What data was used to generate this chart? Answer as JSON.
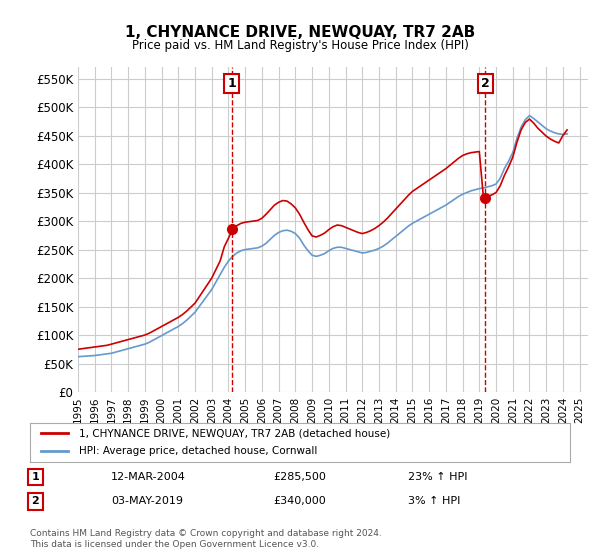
{
  "title": "1, CHYNANCE DRIVE, NEWQUAY, TR7 2AB",
  "subtitle": "Price paid vs. HM Land Registry's House Price Index (HPI)",
  "ylabel_ticks": [
    "£0",
    "£50K",
    "£100K",
    "£150K",
    "£200K",
    "£250K",
    "£300K",
    "£350K",
    "£400K",
    "£450K",
    "£500K",
    "£550K"
  ],
  "ytick_values": [
    0,
    50000,
    100000,
    150000,
    200000,
    250000,
    300000,
    350000,
    400000,
    450000,
    500000,
    550000
  ],
  "ylim": [
    0,
    570000
  ],
  "xlim_start": 1995.0,
  "xlim_end": 2025.5,
  "legend_line1": "1, CHYNANCE DRIVE, NEWQUAY, TR7 2AB (detached house)",
  "legend_line2": "HPI: Average price, detached house, Cornwall",
  "sale1_label": "1",
  "sale1_date": "12-MAR-2004",
  "sale1_price": "£285,500",
  "sale1_hpi": "23% ↑ HPI",
  "sale1_year": 2004.2,
  "sale1_value": 285500,
  "sale2_label": "2",
  "sale2_date": "03-MAY-2019",
  "sale2_price": "£340,000",
  "sale2_hpi": "3% ↑ HPI",
  "sale2_year": 2019.35,
  "sale2_value": 340000,
  "footnote1": "Contains HM Land Registry data © Crown copyright and database right 2024.",
  "footnote2": "This data is licensed under the Open Government Licence v3.0.",
  "line_red_color": "#cc0000",
  "line_blue_color": "#6699cc",
  "marker_color": "#cc0000",
  "vline_color": "#cc0000",
  "grid_color": "#cccccc",
  "bg_color": "#ffffff",
  "hpi_x": [
    1995.0,
    1995.25,
    1995.5,
    1995.75,
    1996.0,
    1996.25,
    1996.5,
    1996.75,
    1997.0,
    1997.25,
    1997.5,
    1997.75,
    1998.0,
    1998.25,
    1998.5,
    1998.75,
    1999.0,
    1999.25,
    1999.5,
    1999.75,
    2000.0,
    2000.25,
    2000.5,
    2000.75,
    2001.0,
    2001.25,
    2001.5,
    2001.75,
    2002.0,
    2002.25,
    2002.5,
    2002.75,
    2003.0,
    2003.25,
    2003.5,
    2003.75,
    2004.0,
    2004.25,
    2004.5,
    2004.75,
    2005.0,
    2005.25,
    2005.5,
    2005.75,
    2006.0,
    2006.25,
    2006.5,
    2006.75,
    2007.0,
    2007.25,
    2007.5,
    2007.75,
    2008.0,
    2008.25,
    2008.5,
    2008.75,
    2009.0,
    2009.25,
    2009.5,
    2009.75,
    2010.0,
    2010.25,
    2010.5,
    2010.75,
    2011.0,
    2011.25,
    2011.5,
    2011.75,
    2012.0,
    2012.25,
    2012.5,
    2012.75,
    2013.0,
    2013.25,
    2013.5,
    2013.75,
    2014.0,
    2014.25,
    2014.5,
    2014.75,
    2015.0,
    2015.25,
    2015.5,
    2015.75,
    2016.0,
    2016.25,
    2016.5,
    2016.75,
    2017.0,
    2017.25,
    2017.5,
    2017.75,
    2018.0,
    2018.25,
    2018.5,
    2018.75,
    2019.0,
    2019.25,
    2019.5,
    2019.75,
    2020.0,
    2020.25,
    2020.5,
    2020.75,
    2021.0,
    2021.25,
    2021.5,
    2021.75,
    2022.0,
    2022.25,
    2022.5,
    2022.75,
    2023.0,
    2023.25,
    2023.5,
    2023.75,
    2024.0,
    2024.25
  ],
  "hpi_y": [
    62000,
    62500,
    63000,
    63500,
    64000,
    65000,
    66000,
    67000,
    68000,
    70000,
    72000,
    74000,
    76000,
    78000,
    80000,
    82000,
    84000,
    87000,
    91000,
    95000,
    99000,
    103000,
    107000,
    111000,
    115000,
    120000,
    126000,
    133000,
    140000,
    150000,
    160000,
    170000,
    180000,
    193000,
    206000,
    219000,
    230000,
    238000,
    244000,
    248000,
    250000,
    251000,
    252000,
    253000,
    256000,
    261000,
    268000,
    275000,
    280000,
    283000,
    284000,
    282000,
    278000,
    270000,
    258000,
    248000,
    240000,
    238000,
    240000,
    243000,
    248000,
    252000,
    254000,
    254000,
    252000,
    250000,
    248000,
    246000,
    244000,
    245000,
    247000,
    249000,
    252000,
    256000,
    261000,
    267000,
    273000,
    279000,
    285000,
    291000,
    296000,
    300000,
    304000,
    308000,
    312000,
    316000,
    320000,
    324000,
    328000,
    333000,
    338000,
    343000,
    347000,
    350000,
    353000,
    355000,
    357000,
    358000,
    360000,
    362000,
    365000,
    375000,
    392000,
    405000,
    420000,
    445000,
    465000,
    478000,
    485000,
    480000,
    474000,
    468000,
    462000,
    458000,
    455000,
    453000,
    452000,
    453000
  ],
  "red_x": [
    1995.0,
    1995.25,
    1995.5,
    1995.75,
    1996.0,
    1996.25,
    1996.5,
    1996.75,
    1997.0,
    1997.25,
    1997.5,
    1997.75,
    1998.0,
    1998.25,
    1998.5,
    1998.75,
    1999.0,
    1999.25,
    1999.5,
    1999.75,
    2000.0,
    2000.25,
    2000.5,
    2000.75,
    2001.0,
    2001.25,
    2001.5,
    2001.75,
    2002.0,
    2002.25,
    2002.5,
    2002.75,
    2003.0,
    2003.25,
    2003.5,
    2003.75,
    2004.0,
    2004.25,
    2004.5,
    2004.75,
    2005.0,
    2005.25,
    2005.5,
    2005.75,
    2006.0,
    2006.25,
    2006.5,
    2006.75,
    2007.0,
    2007.25,
    2007.5,
    2007.75,
    2008.0,
    2008.25,
    2008.5,
    2008.75,
    2009.0,
    2009.25,
    2009.5,
    2009.75,
    2010.0,
    2010.25,
    2010.5,
    2010.75,
    2011.0,
    2011.25,
    2011.5,
    2011.75,
    2012.0,
    2012.25,
    2012.5,
    2012.75,
    2013.0,
    2013.25,
    2013.5,
    2013.75,
    2014.0,
    2014.25,
    2014.5,
    2014.75,
    2015.0,
    2015.25,
    2015.5,
    2015.75,
    2016.0,
    2016.25,
    2016.5,
    2016.75,
    2017.0,
    2017.25,
    2017.5,
    2017.75,
    2018.0,
    2018.25,
    2018.5,
    2018.75,
    2019.0,
    2019.25,
    2019.5,
    2019.75,
    2020.0,
    2020.25,
    2020.5,
    2020.75,
    2021.0,
    2021.25,
    2021.5,
    2021.75,
    2022.0,
    2022.25,
    2022.5,
    2022.75,
    2023.0,
    2023.25,
    2023.5,
    2023.75,
    2024.0,
    2024.25
  ],
  "red_y": [
    75000,
    76000,
    77000,
    78000,
    79000,
    80000,
    81000,
    82000,
    84000,
    86000,
    88000,
    90000,
    92000,
    94000,
    96000,
    98000,
    100000,
    103000,
    107000,
    111000,
    115000,
    119000,
    123000,
    127000,
    131000,
    136000,
    142000,
    149000,
    156000,
    167000,
    178000,
    189000,
    200000,
    215000,
    230000,
    255000,
    270000,
    285500,
    292000,
    296000,
    298000,
    299000,
    300000,
    301000,
    305000,
    312000,
    320000,
    328000,
    333000,
    336000,
    335000,
    330000,
    323000,
    312000,
    298000,
    285000,
    274000,
    272000,
    275000,
    279000,
    285000,
    290000,
    293000,
    292000,
    289000,
    286000,
    283000,
    280000,
    278000,
    280000,
    283000,
    287000,
    292000,
    298000,
    305000,
    313000,
    321000,
    329000,
    337000,
    345000,
    352000,
    357000,
    362000,
    367000,
    372000,
    377000,
    382000,
    387000,
    392000,
    398000,
    404000,
    410000,
    415000,
    418000,
    420000,
    421000,
    422000,
    340000,
    343000,
    346000,
    350000,
    362000,
    380000,
    395000,
    412000,
    438000,
    460000,
    473000,
    479000,
    472000,
    463000,
    456000,
    449000,
    444000,
    440000,
    437000,
    450000,
    460000
  ]
}
